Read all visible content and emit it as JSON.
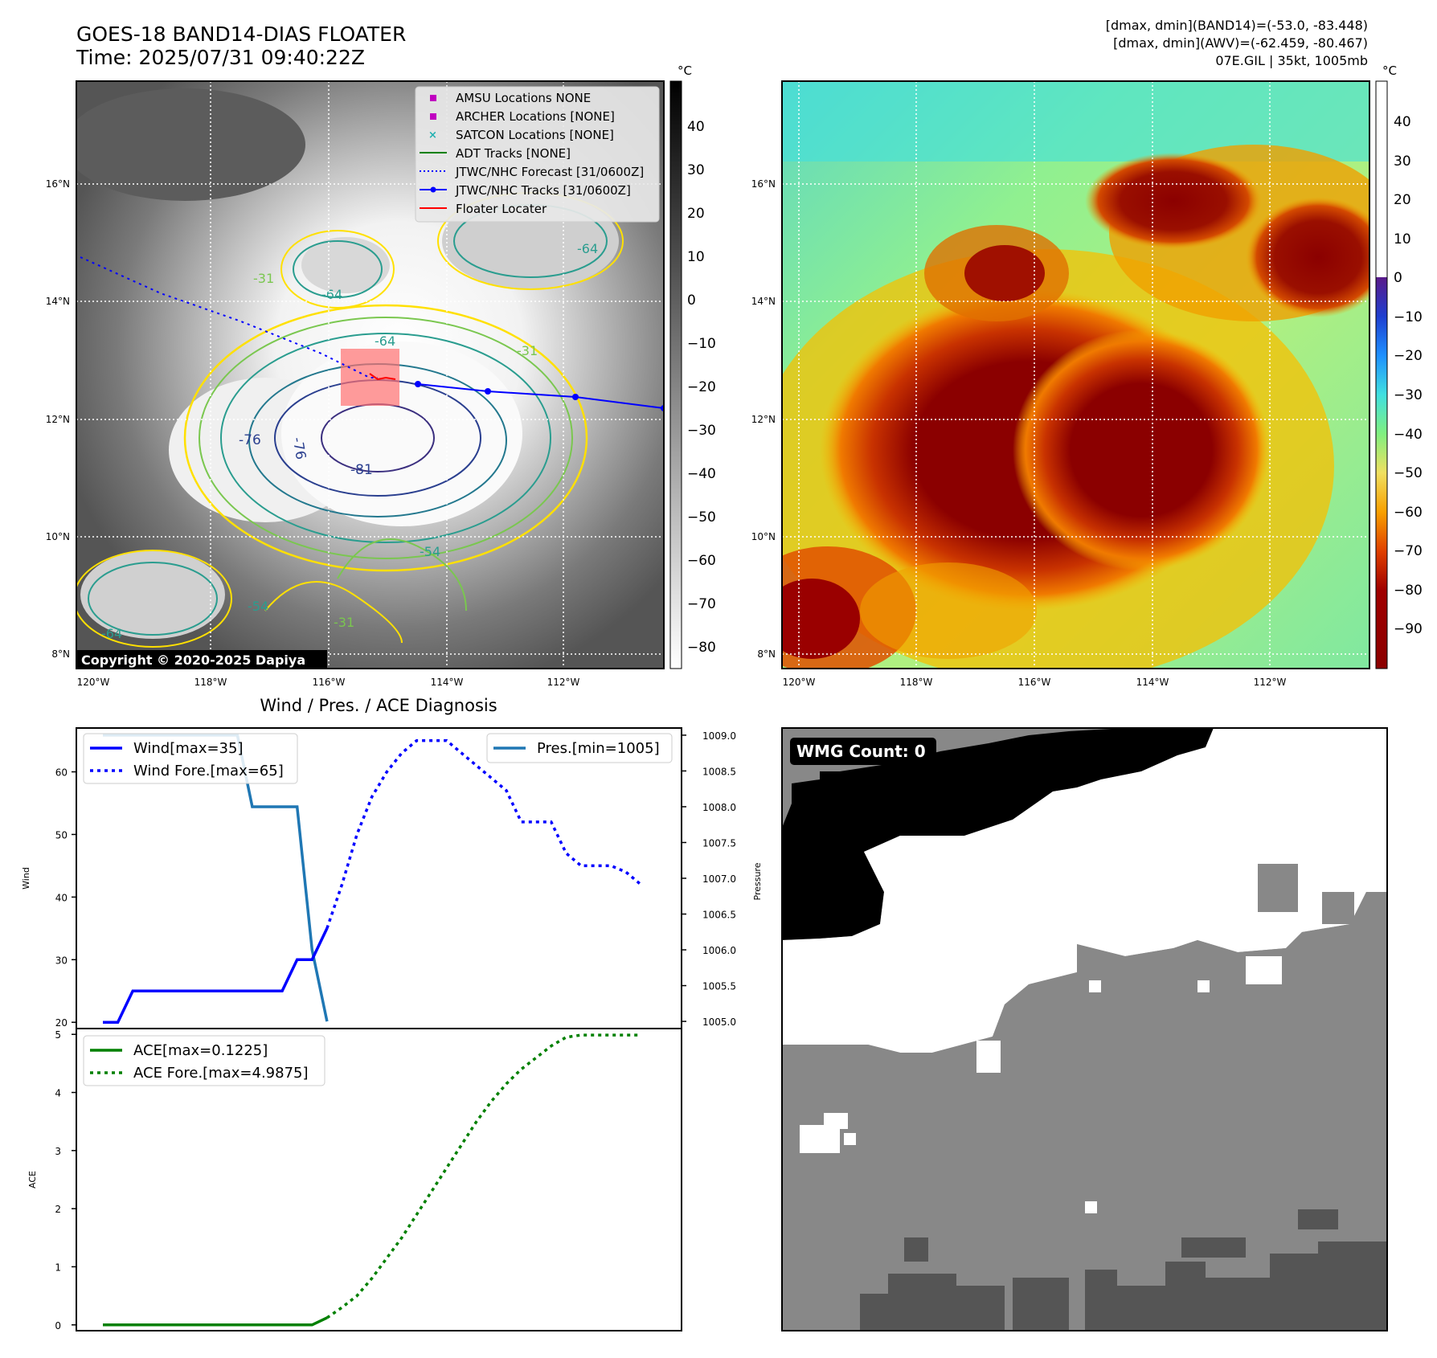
{
  "header": {
    "title_line1": "GOES-18 BAND14-DIAS FLOATER",
    "title_line2": "Time: 2025/07/31 09:40:22Z",
    "info_line1": "[dmax, dmin](BAND14)=(-53.0, -83.448)",
    "info_line2": "[dmax, dmin](AWV)=(-62.459, -80.467)",
    "info_line3": "07E.GIL | 35kt, 1005mb"
  },
  "map": {
    "lat_ticks": [
      "16°N",
      "14°N",
      "12°N",
      "10°N",
      "8°N"
    ],
    "lon_ticks": [
      "120°W",
      "118°W",
      "116°W",
      "114°W",
      "112°W"
    ],
    "copyright": "Copyright © 2020-2025 Dapiya",
    "contour_labels": [
      "-76",
      "-76",
      "-81",
      "-64",
      "-64",
      "-64",
      "-54",
      "-54",
      "-64",
      "-31",
      "-31",
      "-31"
    ]
  },
  "legend": {
    "items": [
      {
        "label": "AMSU Locations NONE",
        "marker": "square",
        "color": "#c000c0"
      },
      {
        "label": "ARCHER Locations [NONE]",
        "marker": "square",
        "color": "#c000c0"
      },
      {
        "label": "SATCON Locations [NONE]",
        "marker": "x",
        "color": "#20b0b0"
      },
      {
        "label": "ADT Tracks [NONE]",
        "marker": "line",
        "color": "#008000"
      },
      {
        "label": "JTWC/NHC Forecast [31/0600Z]",
        "marker": "dotted",
        "color": "#0000ff"
      },
      {
        "label": "JTWC/NHC Tracks [31/0600Z]",
        "marker": "dotline",
        "color": "#0000ff"
      },
      {
        "label": "Floater Locater",
        "marker": "line",
        "color": "#ff0000"
      }
    ]
  },
  "colorbars": {
    "unit": "°C",
    "gray_ticks": [
      "40",
      "30",
      "20",
      "10",
      "0",
      "−10",
      "−20",
      "−30",
      "−40",
      "−50",
      "−60",
      "−70",
      "−80"
    ],
    "color_ticks": [
      "40",
      "30",
      "20",
      "10",
      "0",
      "−10",
      "−20",
      "−30",
      "−40",
      "−50",
      "−60",
      "−70",
      "−80",
      "−90"
    ]
  },
  "diagnosis": {
    "title": "Wind / Pres. / ACE Diagnosis",
    "wind_ylabel": "Wind",
    "pres_ylabel": "Pressure",
    "ace_ylabel": "ACE",
    "wind_legend": [
      "Wind[max=35]",
      "Wind Fore.[max=65]"
    ],
    "pres_legend": [
      "Pres.[min=1005]"
    ],
    "ace_legend": [
      "ACE[max=0.1225]",
      "ACE Fore.[max=4.9875]"
    ]
  },
  "wmg": {
    "label": "WMG Count: 0"
  },
  "colors": {
    "wind": "#0000ff",
    "pressure": "#1f77b4",
    "ace": "#008000",
    "forecast_track": "#0000ff",
    "floater": "#ff0000"
  },
  "chart_data": [
    {
      "type": "line",
      "name": "wind",
      "ylim": [
        19,
        67
      ],
      "yticks": [
        20,
        30,
        40,
        50,
        60
      ],
      "xlim": [
        0,
        37
      ],
      "series": [
        {
          "name": "Wind[max=35]",
          "style": "solid",
          "x": [
            0,
            1,
            2,
            3,
            4,
            5,
            6,
            7,
            8,
            9,
            10,
            11,
            12,
            13,
            14,
            15
          ],
          "values": [
            20,
            20,
            25,
            25,
            25,
            25,
            25,
            25,
            25,
            25,
            25,
            25,
            25,
            30,
            30,
            35
          ]
        },
        {
          "name": "Wind Fore.[max=65]",
          "style": "dotted",
          "x": [
            15,
            16,
            17,
            18,
            19,
            20,
            21,
            22,
            23,
            24,
            25,
            26,
            27,
            28,
            29,
            30,
            31,
            32,
            33,
            34,
            35,
            36
          ],
          "values": [
            35,
            42,
            50,
            56,
            60,
            63,
            65,
            65,
            65,
            63,
            61,
            59,
            57,
            52,
            52,
            52,
            47,
            45,
            45,
            45,
            44,
            42
          ]
        }
      ]
    },
    {
      "type": "line",
      "name": "pressure",
      "ylim": [
        1004.9,
        1009.1
      ],
      "yticks": [
        1005.0,
        1005.5,
        1006.0,
        1006.5,
        1007.0,
        1007.5,
        1008.0,
        1008.5,
        1009.0
      ],
      "series": [
        {
          "name": "Pres.[min=1005]",
          "style": "solid",
          "x": [
            0,
            9,
            10,
            11,
            12,
            13,
            14,
            15
          ],
          "values": [
            1009,
            1009,
            1008,
            1008,
            1008,
            1008,
            1006,
            1005
          ]
        }
      ]
    },
    {
      "type": "line",
      "name": "ace",
      "ylim": [
        -0.1,
        5.1
      ],
      "yticks": [
        0,
        1,
        2,
        3,
        4,
        5
      ],
      "xlim": [
        0,
        37
      ],
      "series": [
        {
          "name": "ACE[max=0.1225]",
          "style": "solid",
          "x": [
            0,
            14,
            15
          ],
          "values": [
            0,
            0,
            0.1225
          ]
        },
        {
          "name": "ACE Fore.[max=4.9875]",
          "style": "dotted",
          "x": [
            15,
            16,
            17,
            18,
            19,
            20,
            21,
            22,
            23,
            24,
            25,
            26,
            27,
            28,
            29,
            30,
            31,
            32,
            33,
            34,
            35,
            36
          ],
          "values": [
            0.1225,
            0.3,
            0.5,
            0.8,
            1.15,
            1.5,
            1.9,
            2.3,
            2.7,
            3.1,
            3.5,
            3.85,
            4.15,
            4.4,
            4.6,
            4.8,
            4.95,
            4.9875,
            4.9875,
            4.9875,
            4.9875,
            4.9875
          ]
        }
      ]
    }
  ]
}
